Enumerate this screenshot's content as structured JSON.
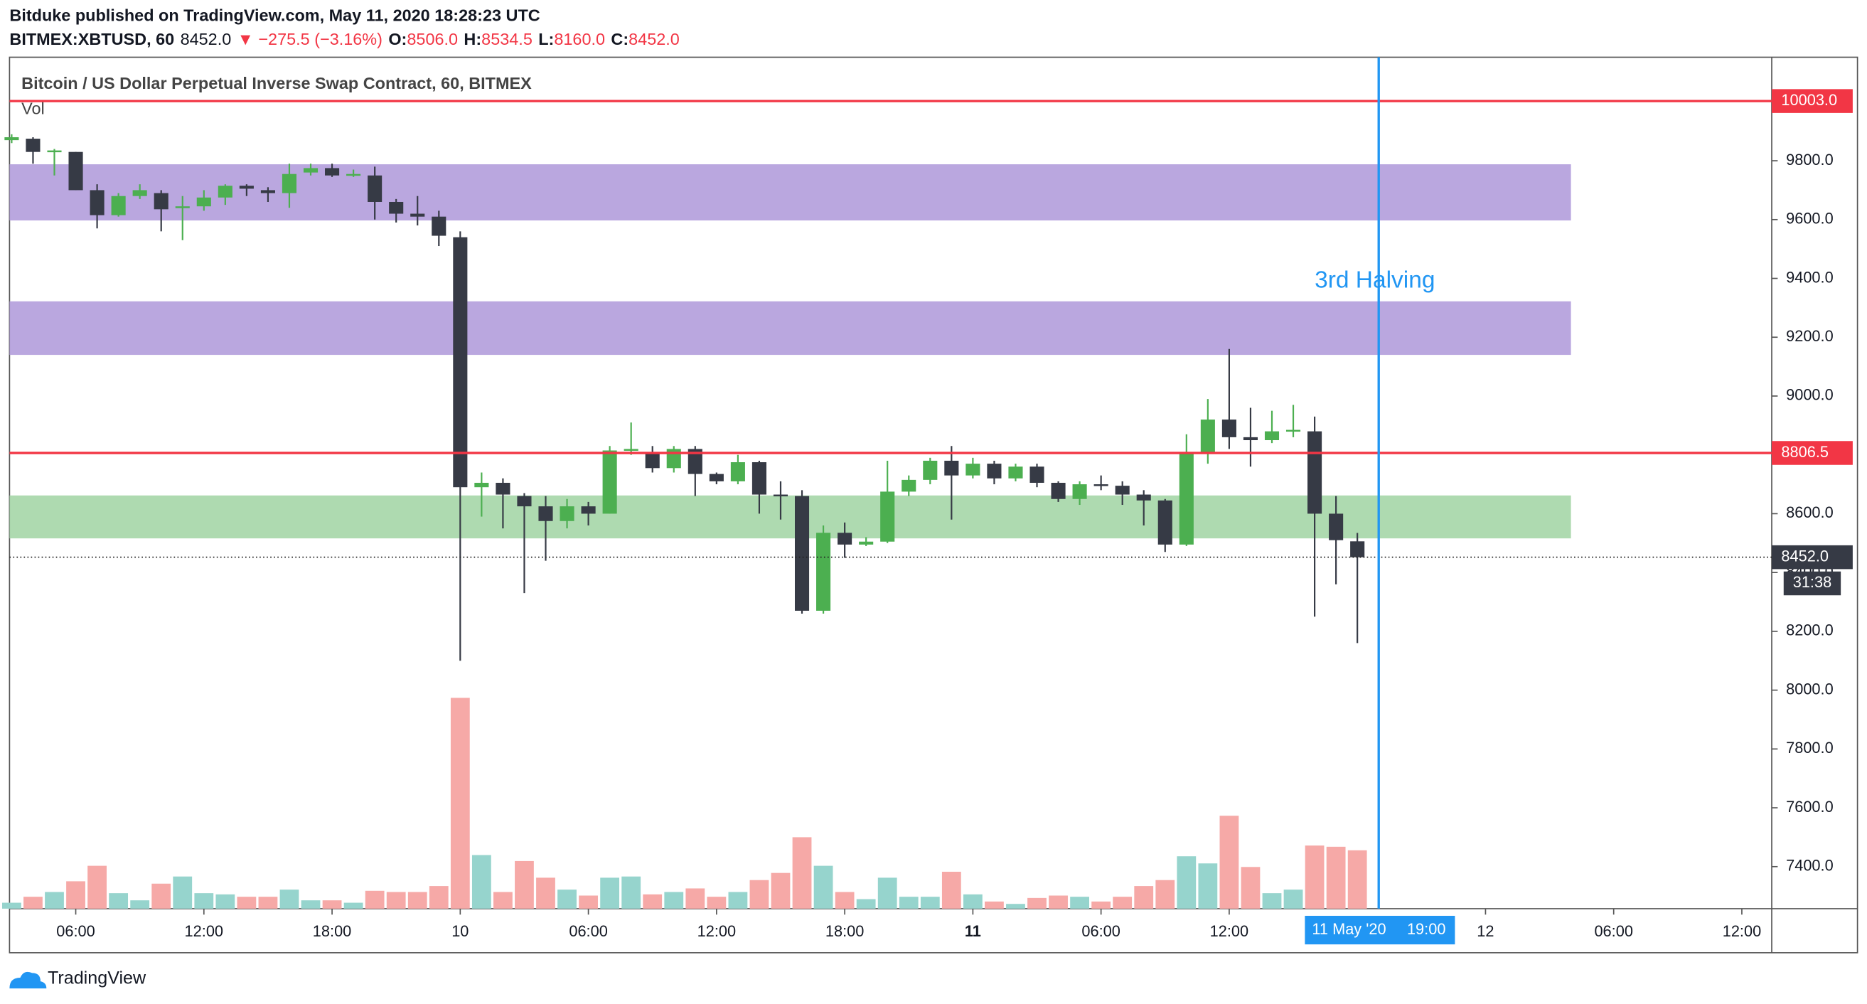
{
  "header": {
    "publisher": "Bitduke published on TradingView.com, May 11, 2020 18:28:23 UTC",
    "symbol": "BITMEX:XBTUSD, 60",
    "last": "8452.0",
    "change": "▼ −275.5 (−3.16%)",
    "o_label": "O:",
    "o": "8506.0",
    "h_label": "H:",
    "h": "8534.5",
    "l_label": "L:",
    "l": "8160.0",
    "c_label": "C:",
    "c": "8452.0"
  },
  "chart_data": {
    "type": "candlestick",
    "title": "Bitcoin / US Dollar Perpetual Inverse Swap Contract, 60, BITMEX",
    "volume_title": "Vol",
    "x": [
      0,
      1,
      2,
      3,
      4,
      5,
      6,
      7,
      8,
      9,
      10,
      11,
      12,
      13,
      14,
      15,
      16,
      17,
      18,
      19,
      20,
      21,
      22,
      23,
      24,
      25,
      26,
      27,
      28,
      29,
      30,
      31,
      32,
      33,
      34,
      35,
      36,
      37,
      38,
      39,
      40,
      41,
      42,
      43,
      44,
      45,
      46,
      47,
      48,
      49,
      50,
      51,
      52,
      53,
      54,
      55,
      56,
      57,
      58,
      59,
      60,
      61,
      62,
      63
    ],
    "open": [
      9870,
      9875,
      9830,
      9830,
      9700,
      9615,
      9680,
      9690,
      9640,
      9645,
      9675,
      9715,
      9700,
      9690,
      9760,
      9775,
      9750,
      9750,
      9660,
      9620,
      9610,
      9540,
      8690,
      8705,
      8660,
      8625,
      8575,
      8625,
      8600,
      8815,
      8810,
      8755,
      8820,
      8735,
      8710,
      8775,
      8665,
      8660,
      8270,
      8535,
      8495,
      8505,
      8675,
      8715,
      8780,
      8730,
      8770,
      8720,
      8760,
      8705,
      8650,
      8700,
      8695,
      8665,
      8645,
      8495,
      8805,
      8920,
      8860,
      8850,
      8880,
      8880,
      8600,
      8506
    ],
    "high": [
      9890,
      9880,
      9840,
      9830,
      9720,
      9690,
      9720,
      9700,
      9680,
      9700,
      9720,
      9720,
      9710,
      9790,
      9790,
      9790,
      9770,
      9780,
      9670,
      9680,
      9630,
      9560,
      8740,
      8720,
      8670,
      8660,
      8650,
      8640,
      8830,
      8910,
      8830,
      8830,
      8830,
      8740,
      8800,
      8780,
      8710,
      8680,
      8560,
      8570,
      8520,
      8780,
      8730,
      8790,
      8830,
      8790,
      8780,
      8770,
      8770,
      8710,
      8710,
      8730,
      8710,
      8680,
      8650,
      8870,
      8990,
      9160,
      8960,
      8950,
      8970,
      8930,
      8660,
      8534.5
    ],
    "low": [
      9860,
      9790,
      9750,
      9700,
      9570,
      9610,
      9670,
      9560,
      9530,
      9630,
      9650,
      9680,
      9660,
      9640,
      9750,
      9745,
      9745,
      9600,
      9590,
      9580,
      9510,
      8100,
      8590,
      8550,
      8330,
      8440,
      8550,
      8560,
      8600,
      8800,
      8740,
      8740,
      8660,
      8700,
      8700,
      8600,
      8580,
      8260,
      8260,
      8450,
      8490,
      8500,
      8660,
      8700,
      8580,
      8720,
      8700,
      8710,
      8690,
      8640,
      8630,
      8680,
      8630,
      8560,
      8470,
      8490,
      8770,
      8820,
      8760,
      8840,
      8860,
      8250,
      8360,
      8160
    ],
    "close": [
      9880,
      9830,
      9835,
      9700,
      9615,
      9680,
      9700,
      9635,
      9645,
      9675,
      9715,
      9705,
      9690,
      9755,
      9775,
      9750,
      9755,
      9660,
      9620,
      9610,
      9545,
      8690,
      8705,
      8665,
      8625,
      8575,
      8625,
      8600,
      8815,
      8820,
      8755,
      8820,
      8735,
      8710,
      8775,
      8665,
      8660,
      8270,
      8535,
      8495,
      8505,
      8675,
      8715,
      8780,
      8730,
      8770,
      8720,
      8760,
      8705,
      8650,
      8700,
      8695,
      8665,
      8645,
      8495,
      8805,
      8920,
      8860,
      8850,
      8880,
      8885,
      8600,
      8510,
      8452
    ],
    "volume": [
      5,
      10,
      14,
      23,
      36,
      13,
      7,
      21,
      27,
      13,
      12,
      10,
      10,
      16,
      7,
      7,
      5,
      15,
      14,
      14,
      19,
      177,
      45,
      14,
      40,
      26,
      16,
      11,
      26,
      27,
      12,
      14,
      17,
      10,
      14,
      24,
      30,
      60,
      36,
      14,
      8,
      26,
      10,
      10,
      31,
      12,
      6,
      4,
      9,
      11,
      10,
      6,
      10,
      19,
      24,
      44,
      38,
      78,
      35,
      13,
      16,
      53,
      52,
      49
    ],
    "up_color": "#4caf50",
    "down_color": "#363a45",
    "volume_up_color": "#96d4cd",
    "volume_down_color": "#f6a9a7",
    "xlim": [
      -0.1,
      82.4
    ],
    "ylim": [
      7257,
      10152
    ],
    "xticks": [
      {
        "value": 3,
        "label": "06:00"
      },
      {
        "value": 9,
        "label": "12:00"
      },
      {
        "value": 15,
        "label": "18:00"
      },
      {
        "value": 21,
        "label": "10"
      },
      {
        "value": 27,
        "label": "06:00"
      },
      {
        "value": 33,
        "label": "12:00"
      },
      {
        "value": 39,
        "label": "18:00"
      },
      {
        "value": 45,
        "label": "11",
        "bold": true
      },
      {
        "value": 51,
        "label": "06:00"
      },
      {
        "value": 57,
        "label": "12:00"
      },
      {
        "value": 69,
        "label": "12"
      },
      {
        "value": 75,
        "label": "06:00"
      },
      {
        "value": 81,
        "label": "12:00"
      }
    ],
    "yticks": [
      {
        "value": 7400,
        "label": "7400.0"
      },
      {
        "value": 7600,
        "label": "7600.0"
      },
      {
        "value": 7800,
        "label": "7800.0"
      },
      {
        "value": 8000,
        "label": "8000.0"
      },
      {
        "value": 8200,
        "label": "8200.0"
      },
      {
        "value": 8400,
        "label": "8400.0"
      },
      {
        "value": 8600,
        "label": "8600.0"
      },
      {
        "value": 8800,
        "label": "8800.0"
      },
      {
        "value": 9000,
        "label": "9000.0"
      },
      {
        "value": 9200,
        "label": "9200.0"
      },
      {
        "value": 9400,
        "label": "9400.0"
      },
      {
        "value": 9600,
        "label": "9600.0"
      },
      {
        "value": 9800,
        "label": "9800.0"
      }
    ],
    "zones": [
      {
        "low": 9597,
        "high": 9788,
        "x_end": 73,
        "color": "#b39ddb"
      },
      {
        "low": 9140,
        "high": 9322,
        "x_end": 73,
        "color": "#b39ddb"
      },
      {
        "low": 8516,
        "high": 8662,
        "x_end": 73,
        "color": "#a5d6a7"
      }
    ],
    "hlines": [
      {
        "value": 10003,
        "label": "10003.0",
        "color": "#f23645"
      },
      {
        "value": 8806.5,
        "label": "8806.5",
        "color": "#f23645"
      }
    ],
    "last_price": {
      "value": 8452,
      "label": "8452.0",
      "countdown": "31:38",
      "color": "#363a45"
    },
    "annotation": {
      "text": "3rd Halving",
      "x": 61,
      "y": 9390,
      "color": "#2196f3"
    },
    "crosshair": {
      "x": 64,
      "date_label": "11 May '20",
      "time_label": "19:00",
      "color": "#2196f3"
    }
  },
  "footer": {
    "brand": "TradingView"
  }
}
